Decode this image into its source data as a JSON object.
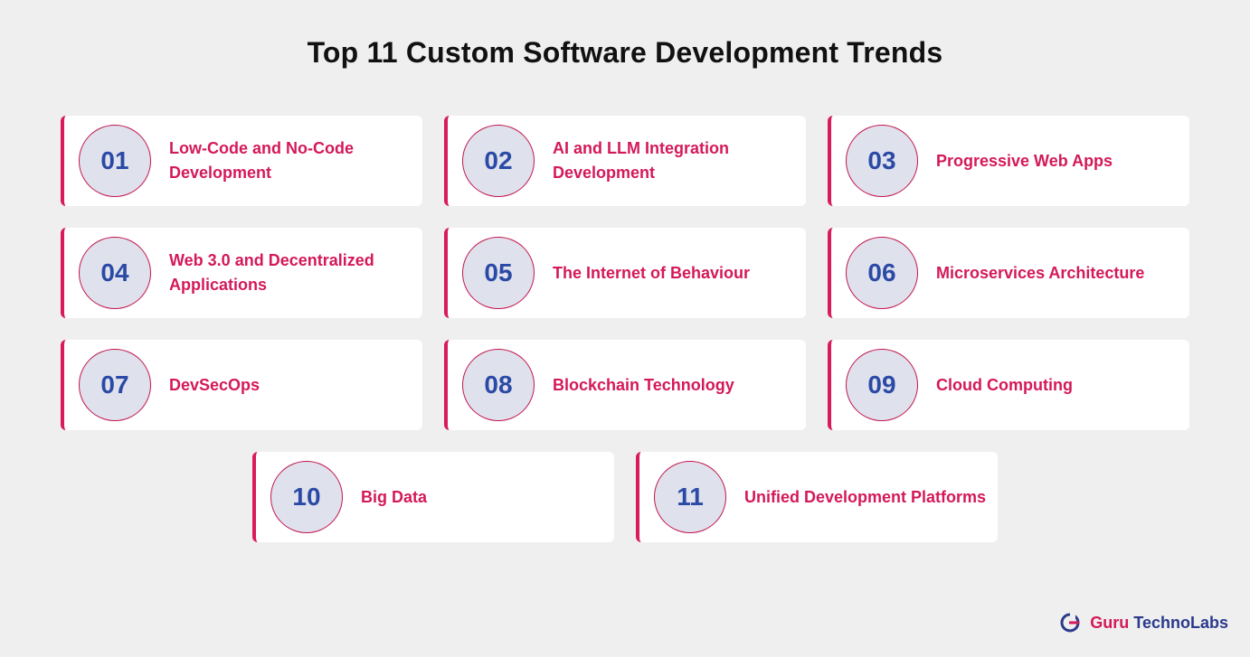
{
  "title": "Top 11 Custom Software Development Trends",
  "colors": {
    "background": "#efefef",
    "accent": "#d4195a",
    "number": "#2b4aa6",
    "circle_fill": "#dfe1ec"
  },
  "trends": [
    {
      "num": "01",
      "label": "Low-Code and No-Code Development"
    },
    {
      "num": "02",
      "label": "AI and LLM Integration Development"
    },
    {
      "num": "03",
      "label": "Progressive Web Apps"
    },
    {
      "num": "04",
      "label": "Web 3.0 and Decentralized Applications"
    },
    {
      "num": "05",
      "label": "The Internet of Behaviour"
    },
    {
      "num": "06",
      "label": "Microservices Architecture"
    },
    {
      "num": "07",
      "label": "DevSecOps"
    },
    {
      "num": "08",
      "label": "Blockchain Technology"
    },
    {
      "num": "09",
      "label": "Cloud Computing"
    },
    {
      "num": "10",
      "label": "Big Data"
    },
    {
      "num": "11",
      "label": "Unified Development Platforms"
    }
  ],
  "brand": {
    "icon": "guru-logo-icon",
    "part1": "Guru",
    "part2": "TechnoLabs"
  }
}
